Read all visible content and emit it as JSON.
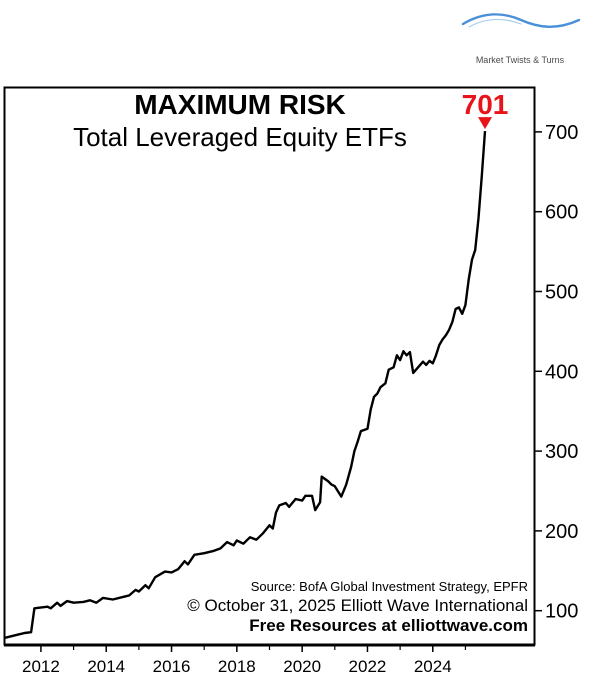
{
  "brand": {
    "name": "Market Twists & Turns",
    "icon": "wave-logo",
    "color": "#4a90d9"
  },
  "chart_data": {
    "type": "line",
    "title": "MAXIMUM RISK",
    "subtitle": "Total Leveraged Equity ETFs",
    "callout": {
      "label": "701",
      "value": 701,
      "color": "#e8141a",
      "icon": "down-arrow"
    },
    "xlabel": "",
    "ylabel": "",
    "xlim": [
      2010.9,
      2027.1
    ],
    "ylim": [
      57,
      755
    ],
    "x_ticks": [
      "2012",
      "2014",
      "2016",
      "2018",
      "2020",
      "2022",
      "2024"
    ],
    "y_ticks": [
      "100",
      "200",
      "300",
      "400",
      "500",
      "600",
      "700"
    ],
    "grid": false,
    "y_axis_position": "right",
    "series": [
      {
        "color": "#000000",
        "points": [
          [
            2010.9,
            66
          ],
          [
            2011.1,
            68
          ],
          [
            2011.3,
            70
          ],
          [
            2011.5,
            72
          ],
          [
            2011.7,
            73
          ],
          [
            2011.8,
            103
          ],
          [
            2012.2,
            105
          ],
          [
            2012.3,
            103
          ],
          [
            2012.5,
            110
          ],
          [
            2012.6,
            106
          ],
          [
            2012.8,
            112
          ],
          [
            2013.0,
            110
          ],
          [
            2013.3,
            111
          ],
          [
            2013.5,
            113
          ],
          [
            2013.7,
            110
          ],
          [
            2013.9,
            116
          ],
          [
            2014.2,
            114
          ],
          [
            2014.5,
            117
          ],
          [
            2014.7,
            119
          ],
          [
            2014.9,
            126
          ],
          [
            2015.0,
            124
          ],
          [
            2015.2,
            132
          ],
          [
            2015.3,
            128
          ],
          [
            2015.5,
            142
          ],
          [
            2015.8,
            149
          ],
          [
            2016.0,
            148
          ],
          [
            2016.2,
            152
          ],
          [
            2016.4,
            162
          ],
          [
            2016.5,
            158
          ],
          [
            2016.7,
            170
          ],
          [
            2017.0,
            172
          ],
          [
            2017.3,
            175
          ],
          [
            2017.5,
            178
          ],
          [
            2017.7,
            186
          ],
          [
            2017.9,
            182
          ],
          [
            2018.0,
            188
          ],
          [
            2018.2,
            184
          ],
          [
            2018.4,
            192
          ],
          [
            2018.6,
            189
          ],
          [
            2018.8,
            197
          ],
          [
            2019.0,
            207
          ],
          [
            2019.1,
            203
          ],
          [
            2019.2,
            223
          ],
          [
            2019.3,
            232
          ],
          [
            2019.5,
            235
          ],
          [
            2019.6,
            230
          ],
          [
            2019.8,
            240
          ],
          [
            2020.0,
            238
          ],
          [
            2020.1,
            244
          ],
          [
            2020.3,
            244
          ],
          [
            2020.4,
            226
          ],
          [
            2020.55,
            236
          ],
          [
            2020.6,
            268
          ],
          [
            2020.8,
            262
          ],
          [
            2020.9,
            258
          ],
          [
            2021.0,
            256
          ],
          [
            2021.2,
            243
          ],
          [
            2021.35,
            258
          ],
          [
            2021.5,
            280
          ],
          [
            2021.6,
            300
          ],
          [
            2021.7,
            312
          ],
          [
            2021.8,
            325
          ],
          [
            2022.0,
            328
          ],
          [
            2022.1,
            352
          ],
          [
            2022.2,
            368
          ],
          [
            2022.3,
            372
          ],
          [
            2022.4,
            380
          ],
          [
            2022.55,
            385
          ],
          [
            2022.65,
            402
          ],
          [
            2022.8,
            405
          ],
          [
            2022.9,
            420
          ],
          [
            2023.0,
            414
          ],
          [
            2023.1,
            425
          ],
          [
            2023.2,
            420
          ],
          [
            2023.3,
            424
          ],
          [
            2023.4,
            398
          ],
          [
            2023.55,
            405
          ],
          [
            2023.7,
            412
          ],
          [
            2023.8,
            408
          ],
          [
            2023.9,
            413
          ],
          [
            2024.0,
            410
          ],
          [
            2024.1,
            420
          ],
          [
            2024.2,
            433
          ],
          [
            2024.3,
            440
          ],
          [
            2024.4,
            445
          ],
          [
            2024.5,
            452
          ],
          [
            2024.6,
            462
          ],
          [
            2024.7,
            478
          ],
          [
            2024.8,
            480
          ],
          [
            2024.9,
            472
          ],
          [
            2025.0,
            483
          ],
          [
            2025.1,
            515
          ],
          [
            2025.2,
            540
          ],
          [
            2025.3,
            552
          ],
          [
            2025.4,
            592
          ],
          [
            2025.5,
            645
          ],
          [
            2025.6,
            701
          ]
        ]
      }
    ]
  },
  "credits": {
    "source": "Source: BofA Global Investment Strategy, EPFR",
    "copyright": "© October 31, 2025  Elliott Wave International",
    "free": "Free Resources at elliottwave.com"
  }
}
